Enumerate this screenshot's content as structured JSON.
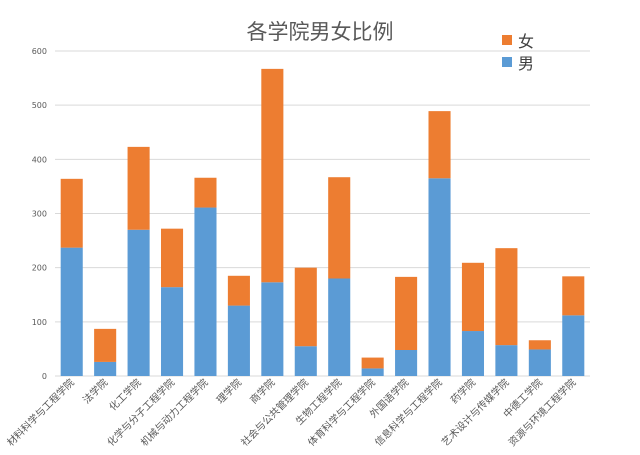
{
  "chart_data": {
    "type": "bar",
    "stacked": true,
    "title": "各学院男女比例",
    "xlabel": "",
    "ylabel": "",
    "ylim": [
      0,
      600
    ],
    "yticks": [
      0,
      100,
      200,
      300,
      400,
      500,
      600
    ],
    "grid": true,
    "legend_position": "top-right",
    "categories": [
      "材料科学与工程学院",
      "法学院",
      "化工学院",
      "化学与分子工程学院",
      "机械与动力工程学院",
      "理学院",
      "商学院",
      "社会与公共管理学院",
      "生物工程学院",
      "体育科学与工程学院",
      "外国语学院",
      "信息科学与工程学院",
      "药学院",
      "艺术设计与传媒学院",
      "中德工学院",
      "资源与环境工程学院"
    ],
    "series": [
      {
        "name": "男",
        "color": "#5B9BD5",
        "values": [
          237,
          26,
          270,
          164,
          311,
          130,
          173,
          55,
          180,
          14,
          48,
          365,
          83,
          57,
          49,
          112
        ]
      },
      {
        "name": "女",
        "color": "#ED7D31",
        "values": [
          127,
          61,
          153,
          108,
          55,
          55,
          394,
          145,
          187,
          20,
          135,
          124,
          126,
          179,
          17,
          72
        ]
      }
    ]
  }
}
